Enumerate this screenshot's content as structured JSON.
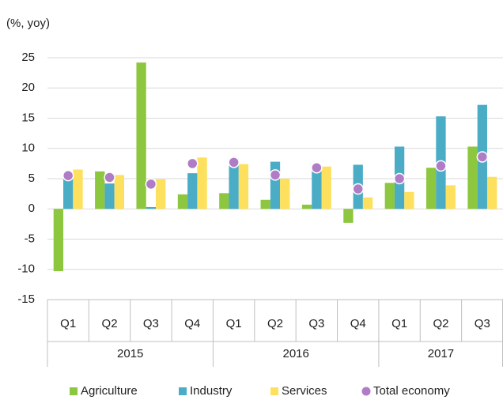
{
  "chart_data": {
    "type": "bar",
    "ylabel": "(%, yoy)",
    "categories": [
      "Q1",
      "Q2",
      "Q3",
      "Q4",
      "Q1",
      "Q2",
      "Q3",
      "Q4",
      "Q1",
      "Q2",
      "Q3"
    ],
    "group_labels": [
      "2015",
      "2015",
      "2015",
      "2015",
      "2016",
      "2016",
      "2016",
      "2016",
      "2017",
      "2017",
      "2017"
    ],
    "series": [
      {
        "name": "Agriculture",
        "color": "#8dc63f",
        "mark": "bar",
        "values": [
          -10.3,
          6.2,
          24.2,
          2.4,
          2.6,
          1.5,
          0.7,
          -2.3,
          4.3,
          6.8,
          10.3
        ]
      },
      {
        "name": "Industry",
        "color": "#4bacc6",
        "mark": "bar",
        "values": [
          5.0,
          4.2,
          0.3,
          5.9,
          8.3,
          7.8,
          6.5,
          7.3,
          10.3,
          15.3,
          17.2
        ]
      },
      {
        "name": "Services",
        "color": "#fde05e",
        "mark": "bar",
        "values": [
          6.5,
          5.6,
          4.9,
          8.5,
          7.4,
          5.0,
          7.0,
          1.9,
          2.8,
          3.9,
          5.3
        ]
      },
      {
        "name": "Total economy",
        "color": "#b07cc6",
        "mark": "dot",
        "values": [
          5.5,
          5.2,
          4.1,
          7.5,
          7.7,
          5.6,
          6.8,
          3.3,
          5.0,
          7.1,
          8.6
        ]
      }
    ],
    "ylim": [
      -15,
      25
    ],
    "yticks": [
      -15,
      -10,
      -5,
      0,
      5,
      10,
      15,
      20,
      25
    ],
    "grid": true,
    "legend": "bottom"
  }
}
